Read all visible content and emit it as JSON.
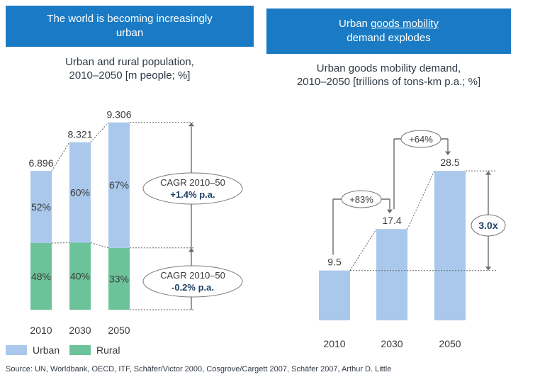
{
  "left_panel": {
    "banner": {
      "line1": "The world is becoming increasingly",
      "line2": "urban"
    },
    "subtitle": {
      "line1": "Urban and rural population,",
      "line2": "2010–2050 [m people; %]"
    },
    "annotations": {
      "upper_cagr": {
        "line1": "CAGR 2010–50",
        "line2": "+1.4% p.a."
      },
      "lower_cagr": {
        "line1": "CAGR 2010–50",
        "line2": "-0.2% p.a."
      }
    }
  },
  "right_panel": {
    "banner": {
      "prefix": "Urban ",
      "underlined": "goods mobility",
      "line2": "demand explodes"
    },
    "subtitle": {
      "line1": "Urban goods mobility demand,",
      "line2": "2010–2050 [trillions of tons-km p.a.; %]"
    },
    "annotations": {
      "growth_2010_2030": "+83%",
      "growth_2030_2050": "+64%",
      "multiplier": "3.0x"
    }
  },
  "source": "Source: UN, Worldbank, OECD, ITF, Schäfer/Victor 2000, Cosgrove/Cargett 2007, Schäfer 2007, Arthur D. Little",
  "colors": {
    "banner": "#1a7bc4",
    "urban": "#a9c8ec",
    "rural": "#6cc39a",
    "bar_right": "#a9c8ec",
    "dark_text": "#2f3a46",
    "emphasis": "#1e3f66",
    "arrow": "#6b6b6b"
  },
  "chart_data": [
    {
      "type": "bar",
      "stacked": true,
      "title": "Urban and rural population, 2010–2050 [m people; %]",
      "categories": [
        "2010",
        "2030",
        "2050"
      ],
      "totals": [
        6.896,
        8.321,
        9.306
      ],
      "total_labels": [
        "6.896",
        "8.321",
        "9.306"
      ],
      "series": [
        {
          "name": "Rural",
          "shares": [
            48,
            40,
            33
          ],
          "labels": [
            "48%",
            "40%",
            "33%"
          ]
        },
        {
          "name": "Urban",
          "shares": [
            52,
            60,
            67
          ],
          "labels": [
            "52%",
            "60%",
            "67%"
          ]
        }
      ],
      "legend": [
        "Urban",
        "Rural"
      ],
      "legend_position": "bottom-left"
    },
    {
      "type": "bar",
      "title": "Urban goods mobility demand, 2010–2050 [trillions of tons-km p.a.; %]",
      "categories": [
        "2010",
        "2030",
        "2050"
      ],
      "values": [
        9.5,
        17.4,
        28.5
      ],
      "value_labels": [
        "9.5",
        "17.4",
        "28.5"
      ]
    }
  ]
}
